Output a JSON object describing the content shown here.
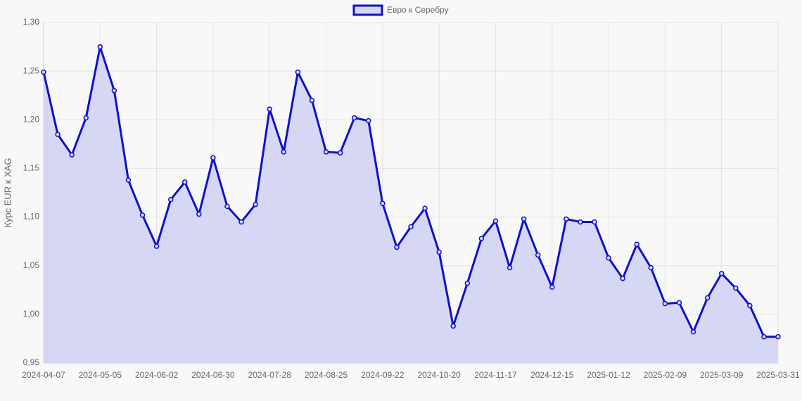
{
  "chart_data": {
    "type": "line",
    "y_label": "Курс EUR к XAG",
    "categories": [
      "2024-04-07",
      null,
      null,
      null,
      "2024-05-05",
      null,
      null,
      null,
      "2024-06-02",
      null,
      null,
      null,
      "2024-06-30",
      null,
      null,
      null,
      "2024-07-28",
      null,
      null,
      null,
      "2024-08-25",
      null,
      null,
      null,
      "2024-09-22",
      null,
      null,
      null,
      "2024-10-20",
      null,
      null,
      null,
      "2024-11-17",
      null,
      null,
      null,
      "2024-12-15",
      null,
      null,
      null,
      "2025-01-12",
      null,
      null,
      null,
      "2025-02-09",
      null,
      null,
      null,
      "2025-03-09",
      null,
      null,
      null,
      "2025-03-31"
    ],
    "series": [
      {
        "name": "Евро к Серебру",
        "color": "#1010cc",
        "fill": "#d5d7f5",
        "values": [
          1.249,
          1.185,
          1.164,
          1.202,
          1.275,
          1.23,
          1.138,
          1.102,
          1.07,
          1.118,
          1.136,
          1.103,
          1.161,
          1.111,
          1.095,
          1.113,
          1.211,
          1.167,
          1.249,
          1.22,
          1.167,
          1.166,
          1.202,
          1.199,
          1.114,
          1.069,
          1.09,
          1.109,
          1.064,
          0.988,
          1.032,
          1.078,
          1.096,
          1.048,
          1.098,
          1.061,
          1.028,
          1.098,
          1.095,
          1.095,
          1.058,
          1.037,
          1.072,
          1.048,
          1.011,
          1.012,
          0.982,
          1.017,
          1.042,
          1.027,
          1.009,
          0.977,
          0.977
        ]
      }
    ],
    "ylim": [
      0.95,
      1.3
    ],
    "yticks": [
      {
        "value": 0.95,
        "label": "0,95"
      },
      {
        "value": 1.0,
        "label": "1,00"
      },
      {
        "value": 1.05,
        "label": "1,05"
      },
      {
        "value": 1.1,
        "label": "1,10"
      },
      {
        "value": 1.15,
        "label": "1,15"
      },
      {
        "value": 1.2,
        "label": "1,20"
      },
      {
        "value": 1.25,
        "label": "1,25"
      },
      {
        "value": 1.3,
        "label": "1,30"
      }
    ],
    "grid": true,
    "legend": "top"
  }
}
